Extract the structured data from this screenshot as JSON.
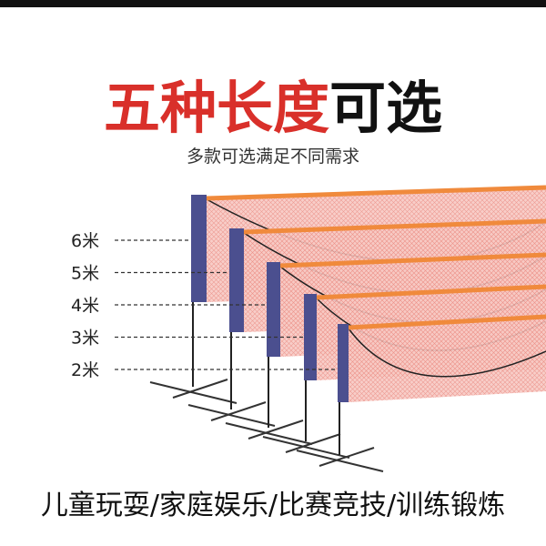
{
  "title": {
    "highlight": "五种长度",
    "rest": "可选"
  },
  "subtitle": "多款可选满足不同需求",
  "length_labels": [
    "6米",
    "5米",
    "4米",
    "3米",
    "2米"
  ],
  "footer": "儿童玩耍/家庭娱乐/比赛竞技/训练锻炼"
}
